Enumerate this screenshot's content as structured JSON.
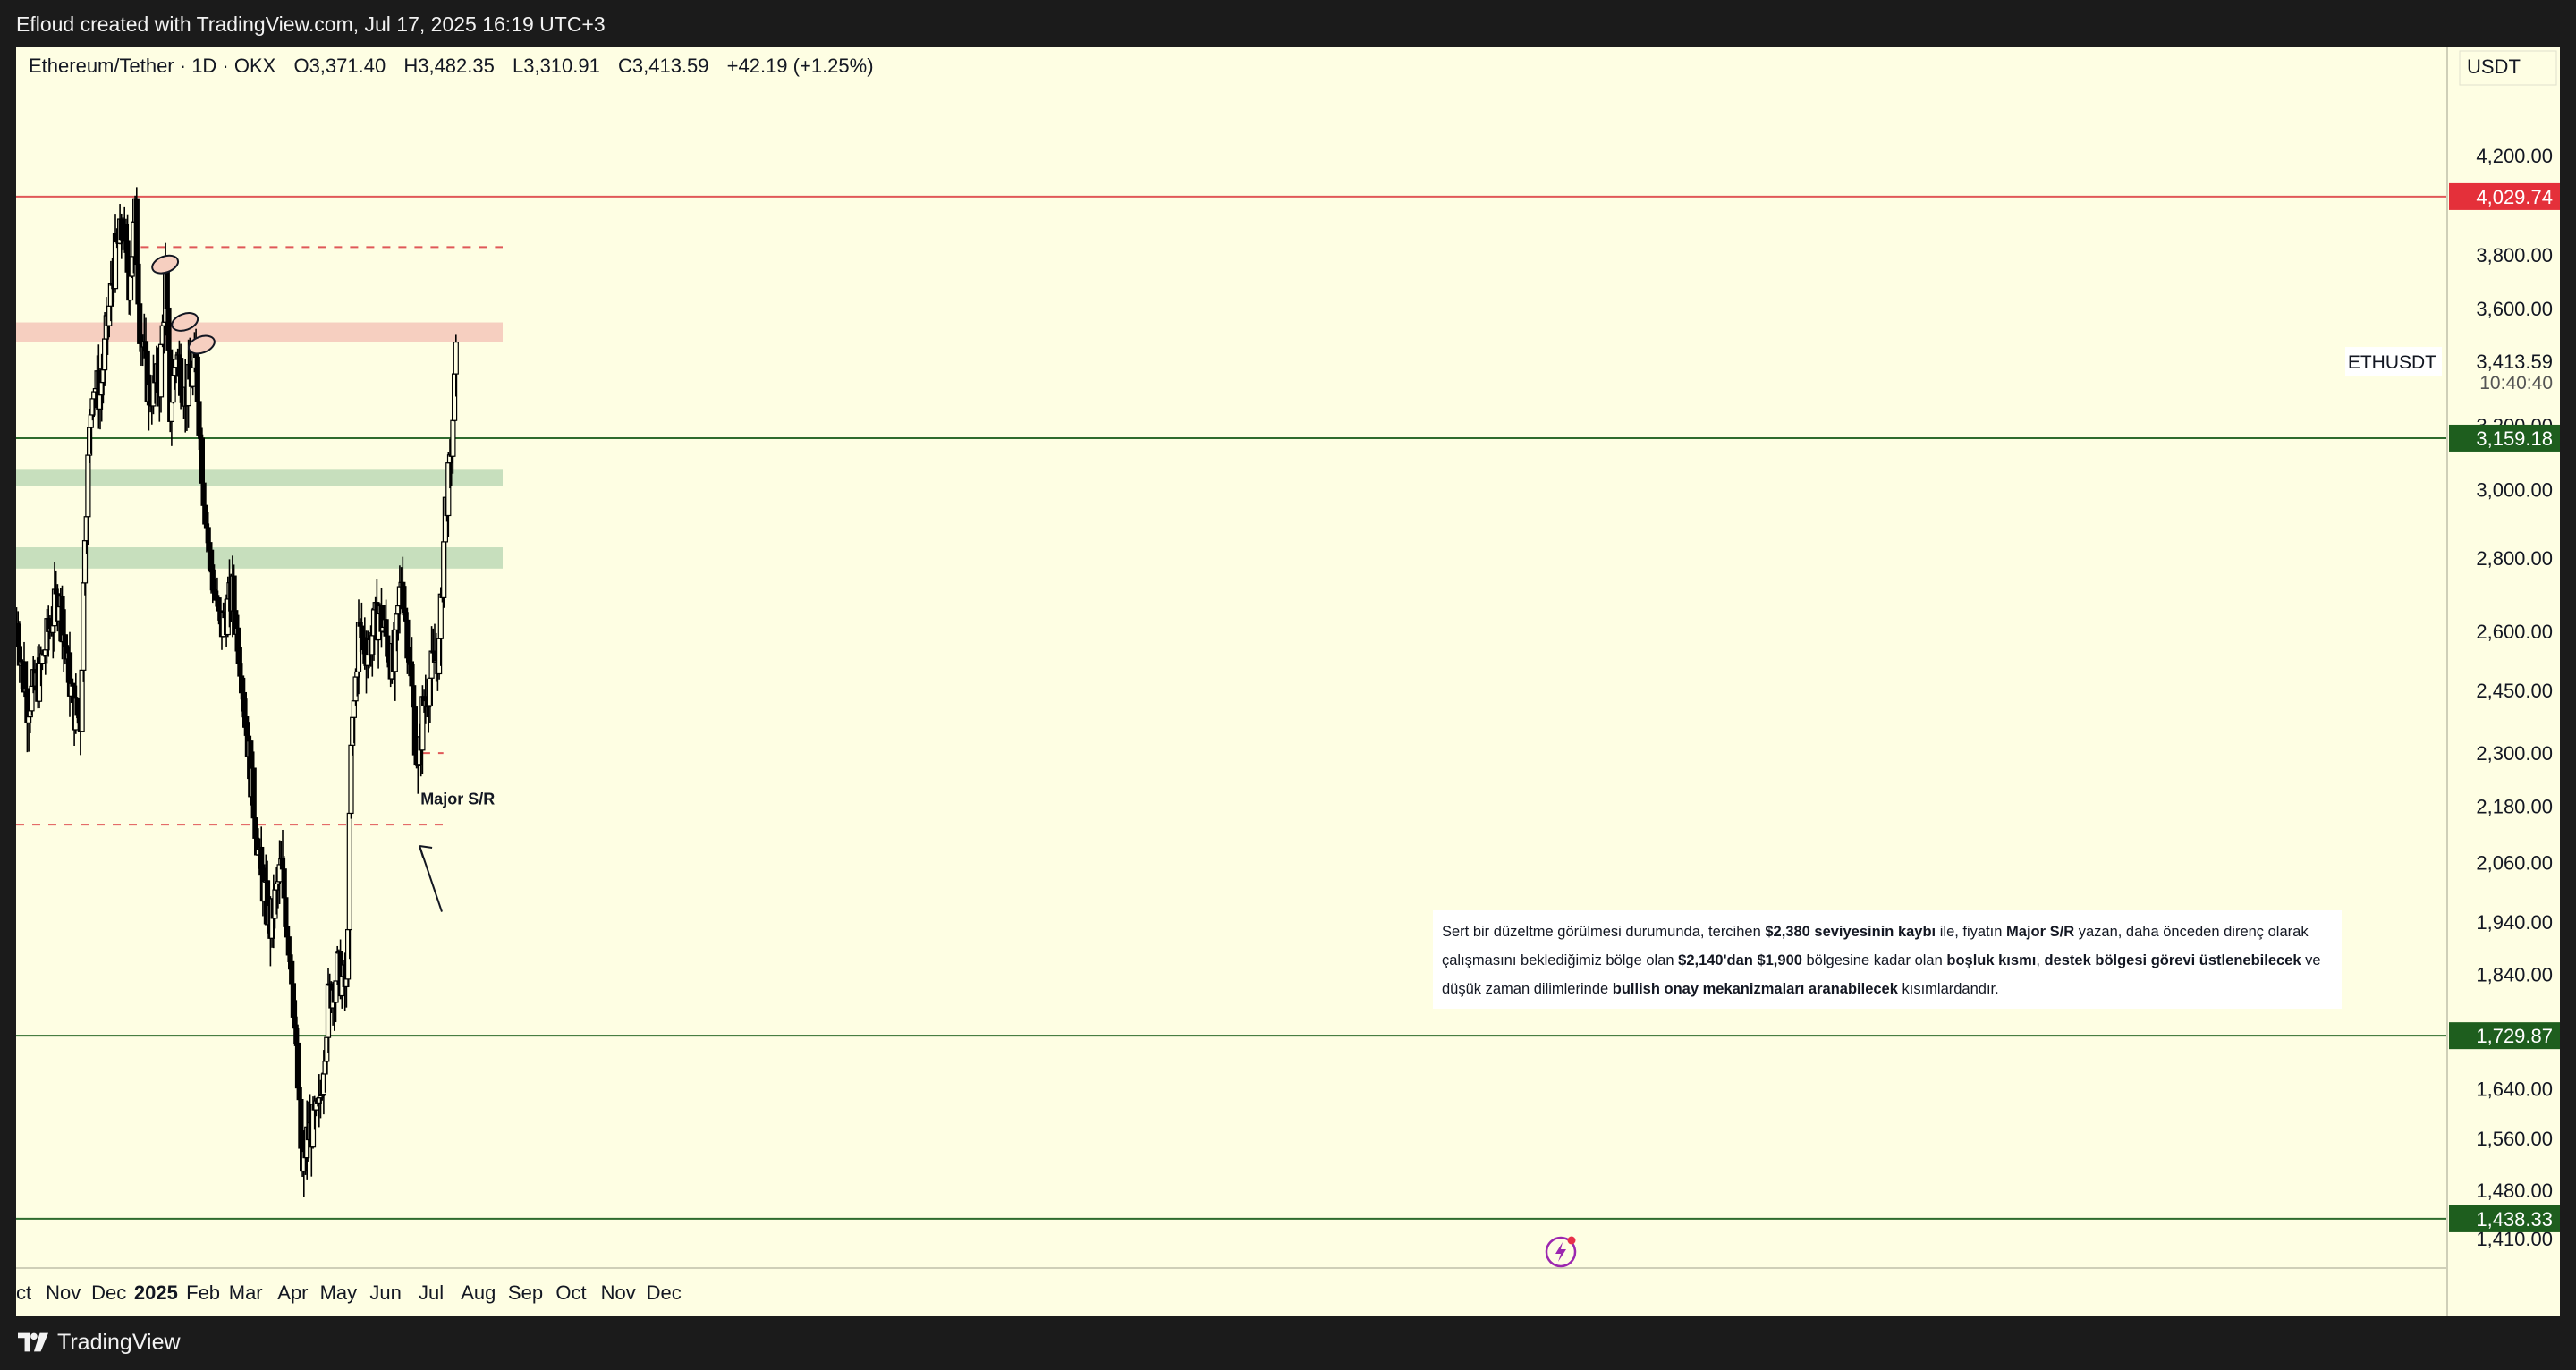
{
  "header": {
    "attribution": "Efloud created with TradingView.com, Jul 17, 2025 16:19 UTC+3",
    "brand": "TradingView"
  },
  "legend": {
    "symbol": "Ethereum/Tether · 1D · OKX",
    "open": "O3,371.40",
    "high": "H3,482.35",
    "low": "L3,310.91",
    "close": "C3,413.59",
    "change": "+42.19 (+1.25%)"
  },
  "colors": {
    "background": "#fefee3",
    "candle": "#000000",
    "resistance_zone": "#f6cfc0",
    "support_zone": "#c7dfbd",
    "red_line": "#e05858",
    "green_line": "#2e6b2e",
    "red_badge": "#e4303a",
    "green_badge": "#1e5e1e"
  },
  "chart_data": {
    "type": "candlestick",
    "symbol_label": "ETHUSDT",
    "currency": "USDT",
    "last_price": "3,413.59",
    "countdown": "10:40:40",
    "y_scale": "log",
    "ylim": [
      1400,
      4500
    ],
    "y_ticks": [
      "4,200.00",
      "3,800.00",
      "3,600.00",
      "3,200.00",
      "3,000.00",
      "2,800.00",
      "2,600.00",
      "2,450.00",
      "2,300.00",
      "2,180.00",
      "2,060.00",
      "1,940.00",
      "1,840.00",
      "1,640.00",
      "1,560.00",
      "1,480.00",
      "1,410.00"
    ],
    "y_tick_values": [
      4200,
      3800,
      3600,
      3200,
      3000,
      2800,
      2600,
      2450,
      2300,
      2180,
      2060,
      1940,
      1840,
      1640,
      1560,
      1480,
      1410
    ],
    "x_ticks": [
      {
        "label": "Oct",
        "date": "2024-10-01"
      },
      {
        "label": "Nov",
        "date": "2024-11-01"
      },
      {
        "label": "Dec",
        "date": "2024-12-01"
      },
      {
        "label": "2025",
        "date": "2025-01-01",
        "bold": true
      },
      {
        "label": "Feb",
        "date": "2025-02-01"
      },
      {
        "label": "Mar",
        "date": "2025-03-01"
      },
      {
        "label": "Apr",
        "date": "2025-04-01"
      },
      {
        "label": "May",
        "date": "2025-05-01"
      },
      {
        "label": "Jun",
        "date": "2025-06-01"
      },
      {
        "label": "Jul",
        "date": "2025-07-01"
      },
      {
        "label": "Aug",
        "date": "2025-08-01"
      },
      {
        "label": "Sep",
        "date": "2025-09-01"
      },
      {
        "label": "Oct",
        "date": "2025-10-01"
      },
      {
        "label": "Nov",
        "date": "2025-11-01"
      },
      {
        "label": "Dec",
        "date": "2025-12-01"
      }
    ],
    "price_path": [
      [
        "2024-10-01",
        2620
      ],
      [
        "2024-10-08",
        2420
      ],
      [
        "2024-10-15",
        2470
      ],
      [
        "2024-10-22",
        2600
      ],
      [
        "2024-10-29",
        2700
      ],
      [
        "2024-11-04",
        2500
      ],
      [
        "2024-11-08",
        2400
      ],
      [
        "2024-11-12",
        2380
      ],
      [
        "2024-11-15",
        2900
      ],
      [
        "2024-11-20",
        3350
      ],
      [
        "2024-11-25",
        3300
      ],
      [
        "2024-12-01",
        3600
      ],
      [
        "2024-12-05",
        3800
      ],
      [
        "2024-12-10",
        3900
      ],
      [
        "2024-12-14",
        3700
      ],
      [
        "2024-12-18",
        3950
      ],
      [
        "2024-12-21",
        3550
      ],
      [
        "2024-12-27",
        3300
      ],
      [
        "2025-01-03",
        3350
      ],
      [
        "2025-01-07",
        3700
      ],
      [
        "2025-01-10",
        3250
      ],
      [
        "2025-01-14",
        3450
      ],
      [
        "2025-01-20",
        3300
      ],
      [
        "2025-01-27",
        3400
      ],
      [
        "2025-02-01",
        3000
      ],
      [
        "2025-02-05",
        2800
      ],
      [
        "2025-02-12",
        2600
      ],
      [
        "2025-02-20",
        2700
      ],
      [
        "2025-02-26",
        2500
      ],
      [
        "2025-03-04",
        2250
      ],
      [
        "2025-03-10",
        2050
      ],
      [
        "2025-03-17",
        1930
      ],
      [
        "2025-03-24",
        2050
      ],
      [
        "2025-03-31",
        1850
      ],
      [
        "2025-04-07",
        1500
      ],
      [
        "2025-04-10",
        1560
      ],
      [
        "2025-04-18",
        1600
      ],
      [
        "2025-04-24",
        1790
      ],
      [
        "2025-04-30",
        1850
      ],
      [
        "2025-05-06",
        1810
      ],
      [
        "2025-05-09",
        2300
      ],
      [
        "2025-05-14",
        2600
      ],
      [
        "2025-05-20",
        2550
      ],
      [
        "2025-05-27",
        2650
      ],
      [
        "2025-05-31",
        2600
      ],
      [
        "2025-06-06",
        2500
      ],
      [
        "2025-06-11",
        2750
      ],
      [
        "2025-06-16",
        2550
      ],
      [
        "2025-06-22",
        2250
      ],
      [
        "2025-06-25",
        2400
      ],
      [
        "2025-07-01",
        2500
      ],
      [
        "2025-07-06",
        2550
      ],
      [
        "2025-07-10",
        2950
      ],
      [
        "2025-07-13",
        3050
      ],
      [
        "2025-07-17",
        3413
      ]
    ],
    "horizontal_lines": [
      {
        "value": 4029.74,
        "label": "4,029.74",
        "style": "solid",
        "color": "red"
      },
      {
        "value": 3159.18,
        "label": "3,159.18",
        "style": "solid",
        "color": "green"
      },
      {
        "value": 1729.87,
        "label": "1,729.87",
        "style": "solid",
        "color": "green"
      },
      {
        "value": 1438.33,
        "label": "1,438.33",
        "style": "solid",
        "color": "green"
      }
    ],
    "dashed_levels": [
      {
        "value": 3830,
        "from": "2024-12-22",
        "to": "2025-08-17"
      },
      {
        "value": 2140,
        "from": "2024-10-01",
        "to": "2025-07-13"
      },
      {
        "value": 2300,
        "from": "2025-06-25",
        "to": "2025-07-09"
      }
    ],
    "zones": [
      {
        "kind": "resistance",
        "from": 3480,
        "to": 3550
      },
      {
        "kind": "support",
        "from": 3010,
        "to": 3060
      },
      {
        "kind": "support",
        "from": 2770,
        "to": 2830
      }
    ],
    "peak_markers": [
      {
        "date": "2025-01-07",
        "value": 3730
      },
      {
        "date": "2025-01-20",
        "value": 3520
      },
      {
        "date": "2025-01-31",
        "value": 3440
      }
    ],
    "annotation_label": "Major S/R",
    "note": {
      "p1": "Sert bir düzeltme görülmesi durumunda, tercihen ",
      "b1": "$2,380 seviyesinin kaybı",
      "p2": " ile, fiyatın ",
      "b2": "Major S/R",
      "p3": " yazan, daha önceden direnç olarak çalışmasını beklediğimiz bölge olan ",
      "b3": "$2,140'dan $1,900",
      "p4": " bölgesine kadar olan ",
      "b4": "boşluk kısmı",
      "p5": ", ",
      "b5": "destek bölgesi görevi üstlenebilecek",
      "p6": " ve düşük zaman dilimlerinde ",
      "b6": "bullish onay mekanizmaları aranabilecek",
      "p7": " kısımlardandır."
    }
  }
}
